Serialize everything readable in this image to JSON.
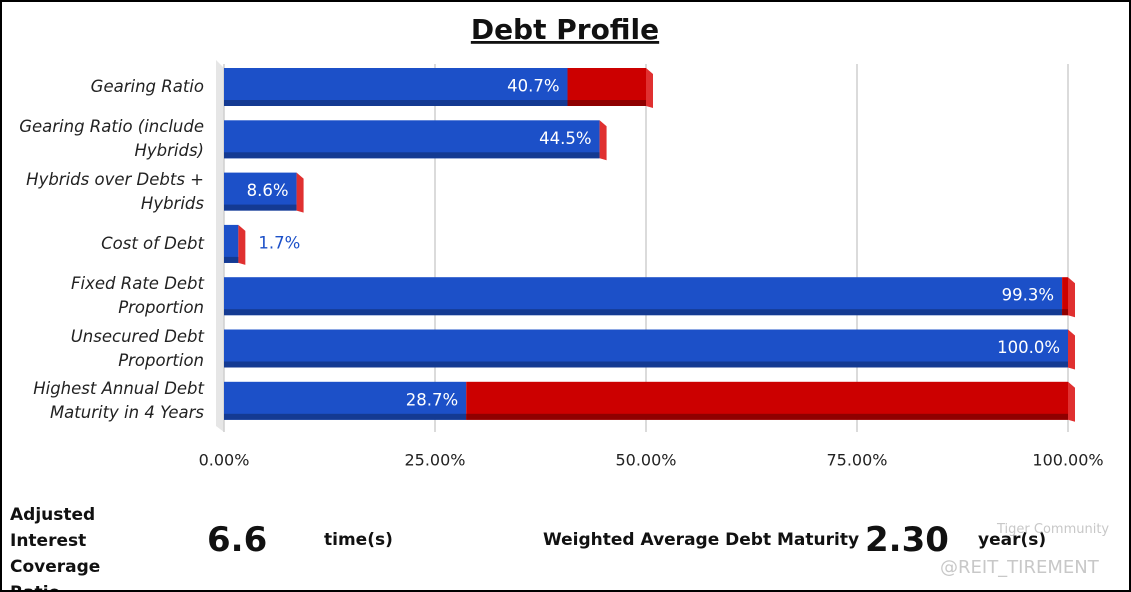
{
  "chart_data": {
    "type": "stacked-bar-horizontal",
    "title": "Debt Profile",
    "categories": [
      "Gearing Ratio",
      "Gearing Ratio (include Hybrids)",
      "Hybrids over Debts + Hybrids",
      "Cost of Debt",
      "Fixed Rate Debt Proportion",
      "Unsecured Debt Proportion",
      "Highest Annual Debt Maturity in 4 Years"
    ],
    "series": [
      {
        "color": "#1c50c8",
        "values": [
          40.7,
          44.5,
          8.6,
          1.7,
          99.3,
          100,
          28.7
        ],
        "value_labels": [
          "40.7%",
          "44.5%",
          "8.6%",
          "1.7%",
          "99.3%",
          "100.0%",
          "28.7%"
        ]
      },
      {
        "color": "#cc0000",
        "values": [
          9.3,
          0,
          0,
          0,
          0.7,
          0,
          71.3
        ]
      }
    ],
    "xlim": [
      0,
      100
    ],
    "xticks": [
      {
        "value": 0,
        "label": "0.00%"
      },
      {
        "value": 25,
        "label": "25.00%"
      },
      {
        "value": 50,
        "label": "50.00%"
      },
      {
        "value": 75,
        "label": "75.00%"
      },
      {
        "value": 100,
        "label": "100.00%"
      }
    ],
    "grid": true
  },
  "footer": {
    "icr_label": "Adjusted Interest Coverage Ratio",
    "icr_value": "6.6",
    "icr_unit": "time(s)",
    "wadm_label": "Weighted Average Debt Maturity",
    "wadm_value": "2.30",
    "wadm_unit": "year(s)",
    "watermark": "Tiger Community",
    "watermark_handle": "@REIT_TIREMENT"
  }
}
